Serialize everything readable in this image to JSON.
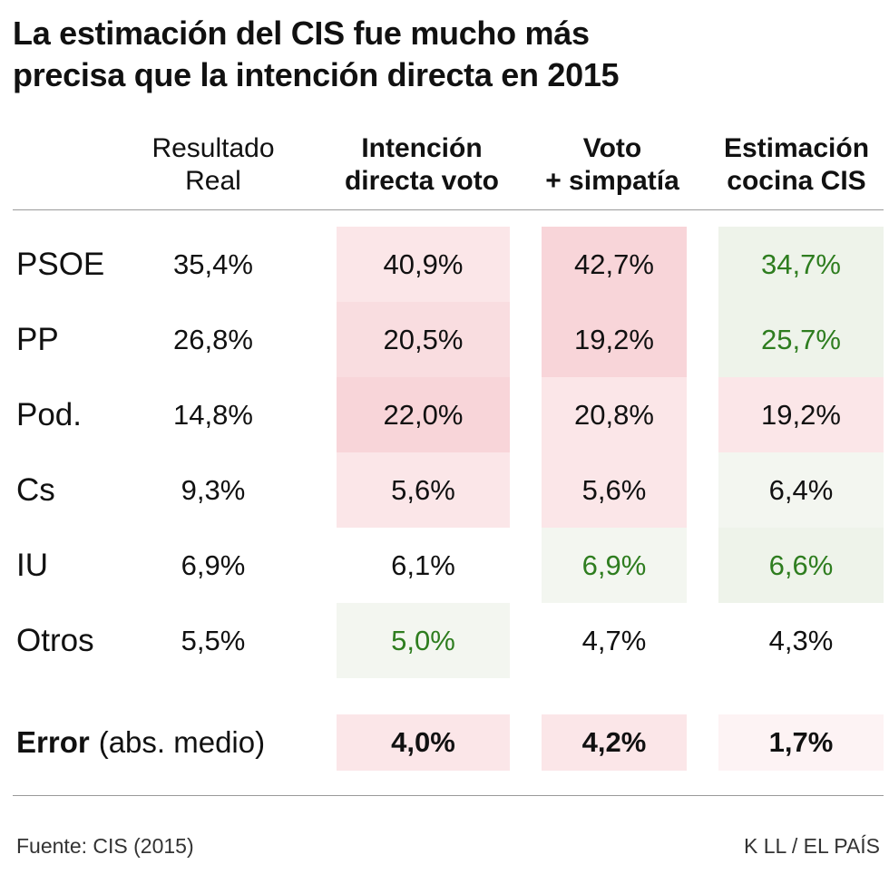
{
  "title": {
    "line1": "La estimación del CIS fue mucho más",
    "line2": "precisa que la intención directa en 2015"
  },
  "chart_data": {
    "type": "table",
    "columns": [
      {
        "line1": "Resultado",
        "line2": "Real"
      },
      {
        "line1": "Intención",
        "line2": "directa voto"
      },
      {
        "line1": "Voto",
        "line2": "+ simpatía"
      },
      {
        "line1": "Estimación",
        "line2": "cocina CIS"
      }
    ],
    "rows": [
      {
        "party": "PSOE",
        "values": [
          "35,4%",
          "40,9%",
          "42,7%",
          "34,7%"
        ]
      },
      {
        "party": "PP",
        "values": [
          "26,8%",
          "20,5%",
          "19,2%",
          "25,7%"
        ]
      },
      {
        "party": "Pod.",
        "values": [
          "14,8%",
          "22,0%",
          "20,8%",
          "19,2%"
        ]
      },
      {
        "party": "Cs",
        "values": [
          "9,3%",
          "5,6%",
          "5,6%",
          "6,4%"
        ]
      },
      {
        "party": "IU",
        "values": [
          "6,9%",
          "6,1%",
          "6,9%",
          "6,6%"
        ]
      },
      {
        "party": "Otros",
        "values": [
          "5,5%",
          "5,0%",
          "4,7%",
          "4,3%"
        ]
      }
    ],
    "error": {
      "label": "Error",
      "sublabel": "(abs. medio)",
      "values": [
        "4,0%",
        "4,2%",
        "1,7%"
      ]
    },
    "cell_fills": [
      [
        null,
        "#fbe6e8",
        "#f8d5d9",
        "#eef3ea"
      ],
      [
        null,
        "#f9dde0",
        "#f8d5d9",
        "#eef3ea"
      ],
      [
        null,
        "#f8d5d9",
        "#fbe6e8",
        "#fbe6e8"
      ],
      [
        null,
        "#fbe6e8",
        "#fbe6e8",
        "#f3f6f0"
      ],
      [
        null,
        null,
        "#f3f6f0",
        "#eef3ea"
      ],
      [
        null,
        "#f3f6f0",
        null,
        null
      ]
    ],
    "green_cells": [
      [
        0,
        3
      ],
      [
        1,
        3
      ],
      [
        4,
        2
      ],
      [
        4,
        3
      ],
      [
        5,
        1
      ]
    ],
    "error_fills": [
      "#fbe6e8",
      "#fbe6e8",
      "#fdf3f4"
    ]
  },
  "footer": {
    "source": "Fuente: CIS (2015)",
    "credit": "K LL / EL PAÍS"
  }
}
